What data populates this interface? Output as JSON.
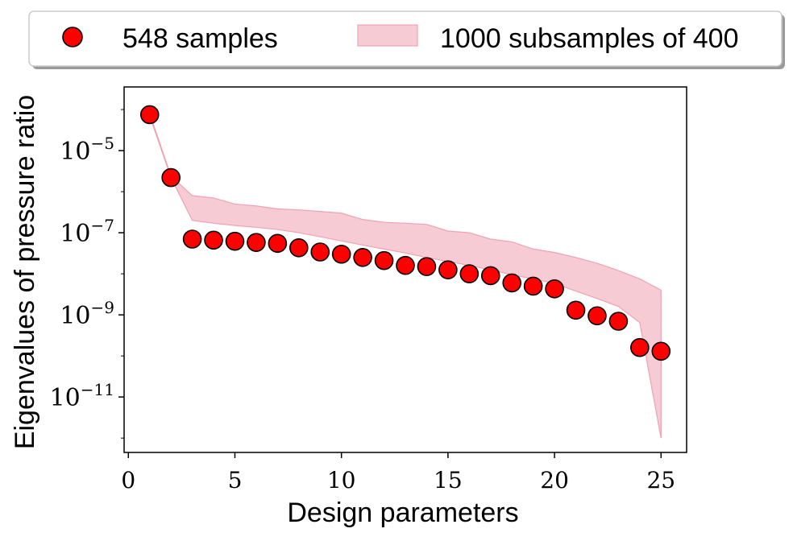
{
  "chart_data": {
    "type": "scatter",
    "xlabel": "Design parameters",
    "ylabel": "Eigenvalues of pressure ratio",
    "x_scale": "linear",
    "y_scale": "log",
    "xlim": [
      -0.2,
      26.2
    ],
    "ylim_log10": [
      -12.35,
      -3.45
    ],
    "xticks": [
      0,
      5,
      10,
      15,
      20,
      25
    ],
    "yticks": [
      {
        "exponent": -11,
        "base": "10",
        "sup": "−11"
      },
      {
        "exponent": -9,
        "base": "10",
        "sup": "−9"
      },
      {
        "exponent": -7,
        "base": "10",
        "sup": "−7"
      },
      {
        "exponent": -5,
        "base": "10",
        "sup": "−5"
      }
    ],
    "legend": {
      "placement": "top, outside, horizontal",
      "entries": [
        "548 samples",
        "1000 subsamples of 400"
      ]
    },
    "series": [
      {
        "name": "548 samples",
        "kind": "points",
        "color": "#ff0000",
        "edgecolor": "#000000",
        "x": [
          1,
          2,
          3,
          4,
          5,
          6,
          7,
          8,
          9,
          10,
          11,
          12,
          13,
          14,
          15,
          16,
          17,
          18,
          19,
          20,
          21,
          22,
          23,
          24,
          25
        ],
        "y": [
          7.5e-05,
          2.2e-06,
          7e-08,
          6.6e-08,
          6.2e-08,
          5.8e-08,
          5.5e-08,
          4.3e-08,
          3.4e-08,
          3e-08,
          2.5e-08,
          2.1e-08,
          1.6e-08,
          1.5e-08,
          1.25e-08,
          1e-08,
          9e-09,
          6e-09,
          5e-09,
          4.3e-09,
          1.3e-09,
          9.5e-10,
          7e-10,
          1.6e-10,
          1.3e-10
        ]
      },
      {
        "name": "1000 subsamples of 400",
        "kind": "band",
        "color": "#f4b8c5",
        "edgecolor": "#e88fa3",
        "x": [
          1,
          2,
          3,
          4,
          5,
          6,
          7,
          8,
          9,
          10,
          11,
          12,
          13,
          14,
          15,
          16,
          17,
          18,
          19,
          20,
          21,
          22,
          23,
          24,
          25
        ],
        "lower": [
          7e-05,
          2.2e-06,
          2e-07,
          1.7e-07,
          1.5e-07,
          1.35e-07,
          1.2e-07,
          1e-07,
          8e-08,
          6.3e-08,
          5e-08,
          4e-08,
          3.2e-08,
          2.5e-08,
          2e-08,
          1.6e-08,
          1.25e-08,
          9.5e-09,
          7.5e-09,
          5.8e-09,
          3.8e-09,
          2.5e-09,
          1.6e-09,
          6.5e-10,
          1e-12
        ],
        "upper": [
          8e-05,
          2.4e-06,
          8e-07,
          7e-07,
          5e-07,
          4.5e-07,
          3.8e-07,
          3.6e-07,
          3.3e-07,
          3e-07,
          2.1e-07,
          1.8e-07,
          1.7e-07,
          1.6e-07,
          1.1e-07,
          1e-07,
          7e-08,
          6e-08,
          4e-08,
          3.3e-08,
          2.5e-08,
          1.8e-08,
          1.2e-08,
          7.5e-09,
          4e-09
        ]
      }
    ]
  }
}
